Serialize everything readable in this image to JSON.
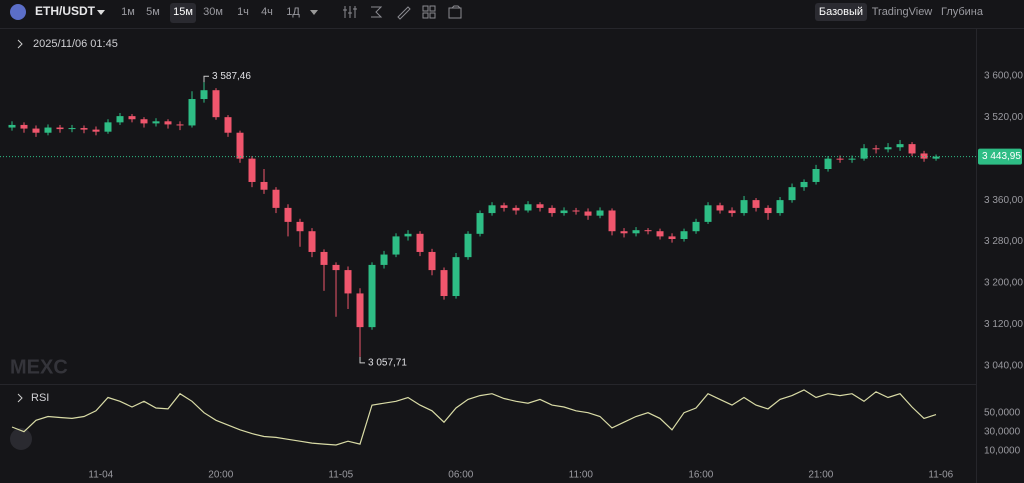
{
  "toolbar": {
    "symbol": "ETH/USDT",
    "intervals": [
      "1м",
      "5м",
      "15м",
      "30м",
      "1ч",
      "4ч",
      "1Д"
    ],
    "active_interval_index": 2,
    "views": [
      "Базовый",
      "TradingView",
      "Глубина"
    ],
    "active_view_index": 0
  },
  "legend_time": "2025/11/06 01:45",
  "watermark": "MEXC",
  "chart_data": [
    {
      "type": "candlestick",
      "up_color": "#2ebd85",
      "down_color": "#f0566d",
      "open": [
        3500,
        3505,
        3498,
        3490,
        3500,
        3497,
        3499,
        3496,
        3492,
        3510,
        3522,
        3516,
        3508,
        3512,
        3506,
        3504,
        3555,
        3572,
        3520,
        3490,
        3440,
        3395,
        3380,
        3345,
        3318,
        3300,
        3260,
        3235,
        3225,
        3180,
        3115,
        3235,
        3255,
        3290,
        3295,
        3260,
        3225,
        3175,
        3250,
        3295,
        3335,
        3350,
        3345,
        3340,
        3352,
        3345,
        3335,
        3340,
        3338,
        3330,
        3340,
        3300,
        3296,
        3302,
        3300,
        3290,
        3285,
        3300,
        3318,
        3350,
        3340,
        3335,
        3360,
        3345,
        3335,
        3360,
        3385,
        3395,
        3420,
        3440,
        3438,
        3440,
        3460,
        3458,
        3462,
        3468,
        3450,
        3440
      ],
      "high": [
        3512,
        3510,
        3504,
        3506,
        3505,
        3505,
        3504,
        3502,
        3516,
        3528,
        3526,
        3520,
        3518,
        3516,
        3512,
        3570,
        3587.46,
        3576,
        3524,
        3494,
        3445,
        3420,
        3385,
        3352,
        3324,
        3306,
        3265,
        3240,
        3232,
        3190,
        3240,
        3262,
        3296,
        3302,
        3300,
        3266,
        3230,
        3258,
        3300,
        3340,
        3356,
        3355,
        3350,
        3358,
        3356,
        3350,
        3346,
        3345,
        3344,
        3346,
        3344,
        3306,
        3308,
        3306,
        3305,
        3296,
        3305,
        3324,
        3356,
        3355,
        3346,
        3368,
        3364,
        3350,
        3366,
        3392,
        3400,
        3428,
        3445,
        3446,
        3446,
        3468,
        3466,
        3470,
        3476,
        3472,
        3455,
        3448
      ],
      "low": [
        3494,
        3490,
        3482,
        3485,
        3490,
        3491,
        3489,
        3485,
        3488,
        3505,
        3510,
        3500,
        3502,
        3498,
        3495,
        3500,
        3548,
        3515,
        3482,
        3432,
        3385,
        3372,
        3335,
        3290,
        3270,
        3250,
        3185,
        3135,
        3150,
        3057.71,
        3110,
        3228,
        3250,
        3282,
        3252,
        3215,
        3168,
        3170,
        3245,
        3290,
        3330,
        3338,
        3332,
        3336,
        3338,
        3328,
        3330,
        3332,
        3322,
        3325,
        3292,
        3288,
        3290,
        3294,
        3284,
        3278,
        3280,
        3295,
        3314,
        3334,
        3328,
        3330,
        3338,
        3322,
        3330,
        3355,
        3378,
        3390,
        3415,
        3432,
        3432,
        3436,
        3450,
        3452,
        3455,
        3445,
        3434,
        3436
      ],
      "close": [
        3505,
        3498,
        3490,
        3500,
        3497,
        3499,
        3496,
        3492,
        3510,
        3522,
        3516,
        3508,
        3512,
        3506,
        3504,
        3555,
        3572,
        3520,
        3490,
        3440,
        3395,
        3380,
        3345,
        3318,
        3300,
        3260,
        3235,
        3225,
        3180,
        3115,
        3235,
        3255,
        3290,
        3295,
        3260,
        3225,
        3175,
        3250,
        3295,
        3335,
        3350,
        3345,
        3340,
        3352,
        3345,
        3335,
        3340,
        3338,
        3330,
        3340,
        3300,
        3296,
        3302,
        3300,
        3290,
        3285,
        3300,
        3318,
        3350,
        3340,
        3335,
        3360,
        3345,
        3335,
        3360,
        3385,
        3395,
        3420,
        3440,
        3438,
        3440,
        3460,
        3458,
        3462,
        3468,
        3450,
        3440,
        3443.95
      ],
      "high_label": {
        "value": 3587.46,
        "label": "3 587,46"
      },
      "low_label": {
        "value": 3057.71,
        "label": "3 057,71"
      },
      "last_price": {
        "value": 3443.95,
        "label": "3 443,95"
      },
      "ylim": [
        3013,
        3692
      ],
      "yticks": [
        {
          "value": 3600,
          "label": "3 600,00"
        },
        {
          "value": 3520,
          "label": "3 520,00"
        },
        {
          "value": 3360,
          "label": "3 360,00"
        },
        {
          "value": 3280,
          "label": "3 280,00"
        },
        {
          "value": 3200,
          "label": "3 200,00"
        },
        {
          "value": 3120,
          "label": "3 120,00"
        },
        {
          "value": 3040,
          "label": "3 040,00"
        }
      ],
      "xlim": [
        -1,
        80.33
      ],
      "xticks": [
        {
          "value": 7.4,
          "label": "11-04"
        },
        {
          "value": 17.4,
          "label": "20:00"
        },
        {
          "value": 27.4,
          "label": "11-05"
        },
        {
          "value": 37.4,
          "label": "06:00"
        },
        {
          "value": 47.4,
          "label": "11:00"
        },
        {
          "value": 57.4,
          "label": "16:00"
        },
        {
          "value": 67.4,
          "label": "21:00"
        },
        {
          "value": 77.4,
          "label": "11-06"
        }
      ]
    },
    {
      "type": "line",
      "name": "RSI",
      "color": "#d9dba6",
      "values": [
        35,
        30,
        42,
        46,
        45,
        44,
        46,
        52,
        66,
        62,
        56,
        62,
        55,
        54,
        70,
        62,
        50,
        42,
        37,
        32,
        28,
        25,
        24,
        22,
        20,
        18,
        17,
        16,
        20,
        17,
        58,
        60,
        62,
        66,
        58,
        52,
        40,
        55,
        64,
        68,
        70,
        65,
        62,
        60,
        64,
        58,
        56,
        52,
        50,
        46,
        34,
        40,
        46,
        50,
        44,
        32,
        50,
        55,
        70,
        64,
        58,
        66,
        58,
        54,
        64,
        68,
        74,
        66,
        70,
        68,
        70,
        62,
        72,
        66,
        70,
        56,
        44,
        48
      ],
      "ylim": [
        -5,
        76
      ],
      "yticks": [
        {
          "value": 50,
          "label": "50,0000"
        },
        {
          "value": 30,
          "label": "30,0000"
        },
        {
          "value": 10,
          "label": "10,0000"
        }
      ]
    }
  ]
}
